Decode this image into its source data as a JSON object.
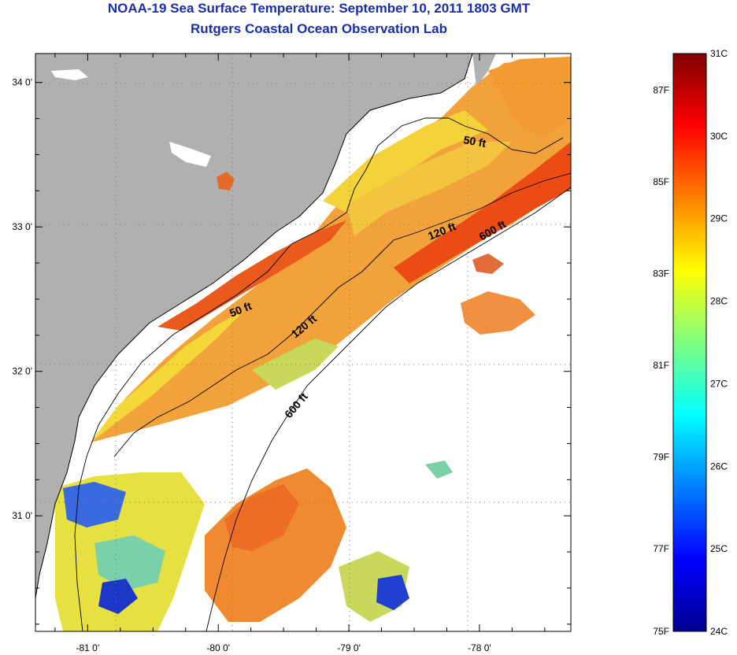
{
  "title": {
    "line1": "NOAA-19 Sea Surface Temperature:  September 10, 2011 1803 GMT",
    "line2": "Rutgers Coastal Ocean Observation Lab"
  },
  "colors": {
    "title": "#1a2ea8",
    "land": "#b0b0b0",
    "no_data": "#ffffff",
    "grid": "#777777"
  },
  "map": {
    "lon_range": [
      -81.4,
      -77.3
    ],
    "lat_range": [
      30.2,
      34.2
    ],
    "lon_ticks": [
      {
        "value": -81,
        "label": "-81 0'"
      },
      {
        "value": -80,
        "label": "-80 0'"
      },
      {
        "value": -79,
        "label": "-79 0'"
      },
      {
        "value": -78,
        "label": "-78 0'"
      }
    ],
    "lat_ticks": [
      {
        "value": 34,
        "label": "34 0'"
      },
      {
        "value": 33,
        "label": "33 0'"
      },
      {
        "value": 32,
        "label": "32 0'"
      },
      {
        "value": 31,
        "label": "31 0'"
      }
    ],
    "grid": true,
    "isobaths": [
      {
        "label": "50 ft",
        "depth_ft": 50
      },
      {
        "label": "120 ft",
        "depth_ft": 120
      },
      {
        "label": "600 ft",
        "depth_ft": 600
      }
    ],
    "contour_labels": {
      "c50a": "50 ft",
      "c50b": "50 ft",
      "c120a": "120 ft",
      "c120b": "120 ft",
      "c600a": "600 ft",
      "c600b": "600 ft"
    }
  },
  "colorbar": {
    "celsius_range": [
      24,
      31
    ],
    "celsius_labels": [
      "31C",
      "30C",
      "29C",
      "28C",
      "27C",
      "26C",
      "25C",
      "24C"
    ],
    "fahrenheit_labels": [
      "87F",
      "85F",
      "83F",
      "81F",
      "79F",
      "77F",
      "75F"
    ],
    "fahrenheit_values": [
      87,
      85,
      83,
      81,
      79,
      77,
      75
    ],
    "gradient_stops": [
      "#00008f",
      "#0000ff",
      "#0080ff",
      "#00ffff",
      "#80ff80",
      "#ffff00",
      "#ff8000",
      "#ff0000",
      "#800000"
    ]
  }
}
